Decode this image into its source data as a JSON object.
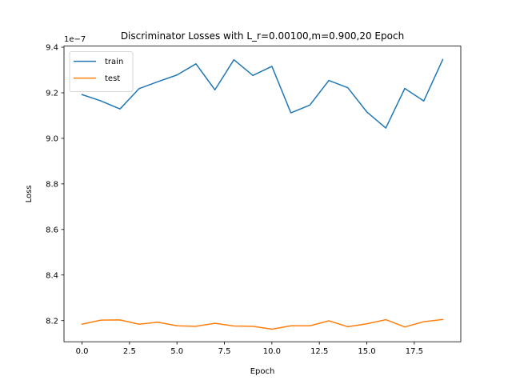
{
  "chart_data": {
    "type": "line",
    "title": "Discriminator Losses with L_r=0.00100,m=0.900,20 Epoch",
    "xlabel": "Epoch",
    "ylabel": "Loss",
    "y_offset_label": "1e−7",
    "xlim": [
      -0.95,
      19.95
    ],
    "ylim": [
      8.107,
      9.405
    ],
    "xticks": [
      0.0,
      2.5,
      5.0,
      7.5,
      10.0,
      12.5,
      15.0,
      17.5
    ],
    "xtick_labels": [
      "0.0",
      "2.5",
      "5.0",
      "7.5",
      "10.0",
      "12.5",
      "15.0",
      "17.5"
    ],
    "yticks": [
      8.2,
      8.4,
      8.6,
      8.8,
      9.0,
      9.2,
      9.4
    ],
    "ytick_labels": [
      "8.2",
      "8.4",
      "8.6",
      "8.8",
      "9.0",
      "9.2",
      "9.4"
    ],
    "grid": false,
    "legend_position": "top-left",
    "x": [
      0,
      1,
      2,
      3,
      4,
      5,
      6,
      7,
      8,
      9,
      10,
      11,
      12,
      13,
      14,
      15,
      16,
      17,
      18,
      19
    ],
    "series": [
      {
        "name": "train",
        "color": "#1f77b4",
        "values": [
          9.192,
          9.164,
          9.129,
          9.218,
          9.249,
          9.278,
          9.327,
          9.213,
          9.345,
          9.276,
          9.316,
          9.112,
          9.146,
          9.254,
          9.222,
          9.116,
          9.045,
          9.219,
          9.164,
          9.346
        ]
      },
      {
        "name": "test",
        "color": "#ff7f0e",
        "values": [
          8.184,
          8.202,
          8.203,
          8.184,
          8.193,
          8.177,
          8.175,
          8.188,
          8.176,
          8.175,
          8.162,
          8.177,
          8.177,
          8.199,
          8.173,
          8.186,
          8.204,
          8.172,
          8.195,
          8.205
        ]
      }
    ]
  }
}
